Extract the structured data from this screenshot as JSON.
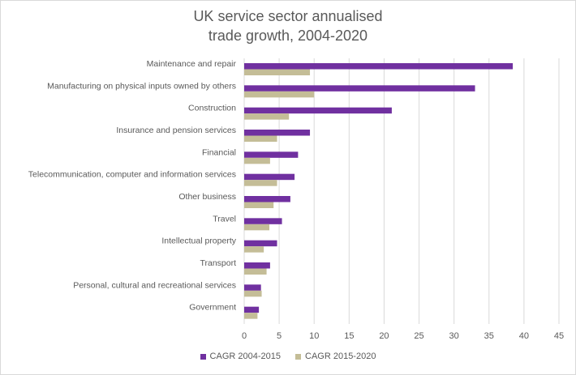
{
  "chart_data": {
    "type": "bar",
    "orientation": "horizontal",
    "title": "UK service sector annualised\ntrade growth, 2004-2020",
    "categories": [
      "Maintenance and repair",
      "Manufacturing on physical inputs owned by others",
      "Construction",
      "Insurance and pension services",
      "Financial",
      "Telecommunication, computer and information services",
      "Other business",
      "Travel",
      "Intellectual property",
      "Transport",
      "Personal, cultural and recreational services",
      "Government"
    ],
    "series": [
      {
        "name": "CAGR 2004-2015",
        "color": "#7030a0",
        "values": [
          38.4,
          33.0,
          21.1,
          9.4,
          7.7,
          7.2,
          6.6,
          5.4,
          4.7,
          3.7,
          2.4,
          2.1
        ]
      },
      {
        "name": "CAGR 2015-2020",
        "color": "#c4bd97",
        "values": [
          9.4,
          10.0,
          6.4,
          4.7,
          3.7,
          4.7,
          4.2,
          3.6,
          2.8,
          3.2,
          2.5,
          1.9
        ]
      }
    ],
    "x_ticks": [
      0,
      5,
      10,
      15,
      20,
      25,
      30,
      35,
      40,
      45
    ],
    "xlim": [
      0,
      45
    ],
    "gridlines": true,
    "legend_position": "bottom"
  }
}
